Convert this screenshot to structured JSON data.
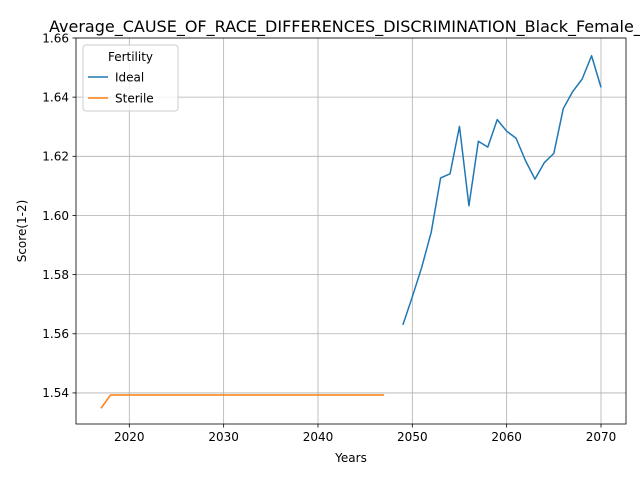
{
  "chart_data": {
    "type": "line",
    "title": "Average_CAUSE_OF_RACE_DIFFERENCES_DISCRIMINATION_Black_Female_C",
    "xlabel": "Years",
    "ylabel": "Score(1-2)",
    "xlim": [
      2014.35,
      2072.65
    ],
    "ylim": [
      1.5295,
      1.66
    ],
    "xticks": [
      2020,
      2030,
      2040,
      2050,
      2060,
      2070
    ],
    "yticks": [
      1.54,
      1.56,
      1.58,
      1.6,
      1.62,
      1.64,
      1.66
    ],
    "xtick_labels": [
      "2020",
      "2030",
      "2040",
      "2050",
      "2060",
      "2070"
    ],
    "ytick_labels": [
      "1.54",
      "1.56",
      "1.58",
      "1.60",
      "1.62",
      "1.64",
      "1.66"
    ],
    "grid": true,
    "legend": {
      "title": "Fertility",
      "placement": "top-left"
    },
    "series": [
      {
        "name": "Ideal",
        "color": "#1f77b4",
        "x": [
          2049,
          2050,
          2051,
          2052,
          2053,
          2054,
          2055,
          2056,
          2057,
          2058,
          2059,
          2060,
          2061,
          2062,
          2063,
          2064,
          2065,
          2066,
          2067,
          2068,
          2069,
          2070
        ],
        "y": [
          1.563,
          1.5725,
          1.5825,
          1.5943,
          1.6127,
          1.6141,
          1.6301,
          1.6033,
          1.6251,
          1.6231,
          1.6324,
          1.6285,
          1.6261,
          1.6185,
          1.6123,
          1.6179,
          1.621,
          1.6361,
          1.6419,
          1.6461,
          1.654,
          1.6433
        ]
      },
      {
        "name": "Sterile",
        "color": "#ff7f0e",
        "x": [
          2017,
          2018,
          2019,
          2020,
          2021,
          2022,
          2023,
          2024,
          2025,
          2026,
          2027,
          2028,
          2029,
          2030,
          2031,
          2032,
          2033,
          2034,
          2035,
          2036,
          2037,
          2038,
          2039,
          2040,
          2041,
          2042,
          2043,
          2044,
          2045,
          2046,
          2047
        ],
        "y": [
          1.5348,
          1.5393,
          1.5393,
          1.5393,
          1.5393,
          1.5393,
          1.5393,
          1.5393,
          1.5393,
          1.5393,
          1.5393,
          1.5393,
          1.5393,
          1.5393,
          1.5393,
          1.5393,
          1.5393,
          1.5393,
          1.5393,
          1.5393,
          1.5393,
          1.5393,
          1.5393,
          1.5393,
          1.5393,
          1.5393,
          1.5393,
          1.5393,
          1.5393,
          1.5393,
          1.5393
        ]
      }
    ]
  }
}
